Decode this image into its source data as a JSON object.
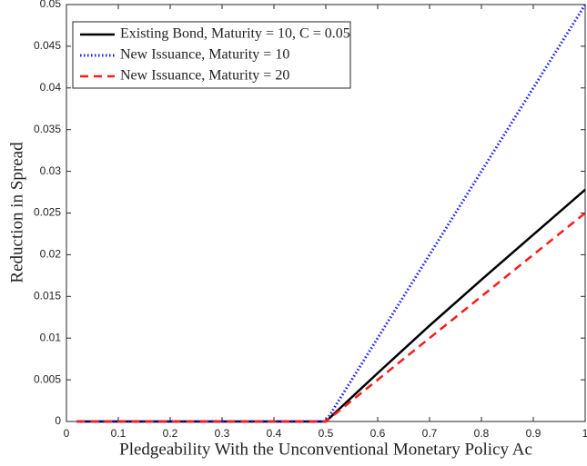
{
  "chart_data": {
    "type": "line",
    "xlabel": "Pledgeability With the Unconventional Monetary Policy Ac",
    "ylabel": "Reduction in Spread",
    "x": [
      0.02,
      0.5,
      0.6,
      0.7,
      0.8,
      0.9,
      1
    ],
    "series": [
      {
        "name": "Existing Bond, Maturity = 10, C = 0.05",
        "color": "#000000",
        "dash": "solid",
        "values": [
          0,
          0,
          0.0058,
          0.0115,
          0.017,
          0.0224,
          0.0278
        ]
      },
      {
        "name": "New Issuance, Maturity = 10",
        "color": "#1a1aff",
        "dash": "dotted",
        "values": [
          0,
          0,
          0.01,
          0.02,
          0.03,
          0.04,
          0.05
        ]
      },
      {
        "name": "New Issuance, Maturity = 20",
        "color": "#ff1a1a",
        "dash": "dashed",
        "values": [
          0,
          0,
          0.005,
          0.01,
          0.015,
          0.02,
          0.025
        ]
      }
    ],
    "xlim": [
      0,
      1
    ],
    "xticks": [
      0,
      0.1,
      0.2,
      0.3,
      0.4,
      0.5,
      0.6,
      0.7,
      0.8,
      0.9,
      1
    ],
    "ylim": [
      0,
      0.05
    ],
    "yticks": [
      0,
      0.005,
      0.01,
      0.015,
      0.02,
      0.025,
      0.03,
      0.035,
      0.04,
      0.045,
      0.05
    ],
    "legend": "upper left",
    "grid": false
  }
}
